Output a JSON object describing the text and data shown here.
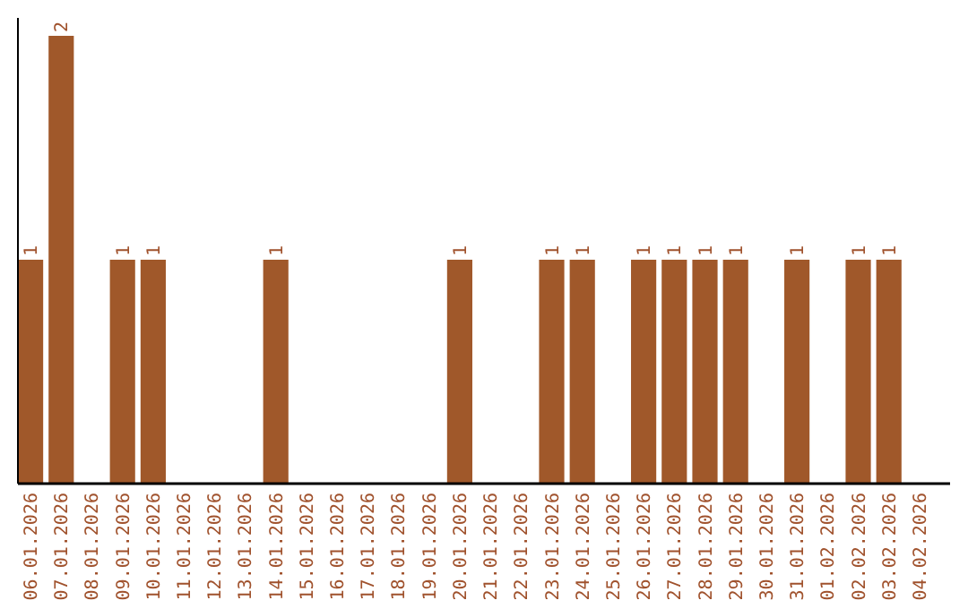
{
  "chart_data": {
    "type": "bar",
    "categories": [
      "06.01.2026",
      "07.01.2026",
      "08.01.2026",
      "09.01.2026",
      "10.01.2026",
      "11.01.2026",
      "12.01.2026",
      "13.01.2026",
      "14.01.2026",
      "15.01.2026",
      "16.01.2026",
      "17.01.2026",
      "18.01.2026",
      "19.01.2026",
      "20.01.2026",
      "21.01.2026",
      "22.01.2026",
      "23.01.2026",
      "24.01.2026",
      "25.01.2026",
      "26.01.2026",
      "27.01.2026",
      "28.01.2026",
      "29.01.2026",
      "30.01.2026",
      "31.01.2026",
      "01.02.2026",
      "02.02.2026",
      "03.02.2026",
      "04.02.2026"
    ],
    "values": [
      1,
      2,
      0,
      1,
      1,
      0,
      0,
      0,
      1,
      0,
      0,
      0,
      0,
      0,
      1,
      0,
      0,
      1,
      1,
      0,
      1,
      1,
      1,
      1,
      0,
      1,
      0,
      1,
      1,
      0
    ],
    "value_labels": [
      "1",
      "2",
      null,
      "1",
      "1",
      null,
      null,
      null,
      "1",
      null,
      null,
      null,
      null,
      null,
      "1",
      null,
      null,
      "1",
      "1",
      null,
      "1",
      "1",
      "1",
      "1",
      null,
      "1",
      null,
      "1",
      "1",
      null
    ],
    "color": "#a0582a",
    "ylim": [
      0,
      2
    ],
    "tick_labels": "x"
  }
}
